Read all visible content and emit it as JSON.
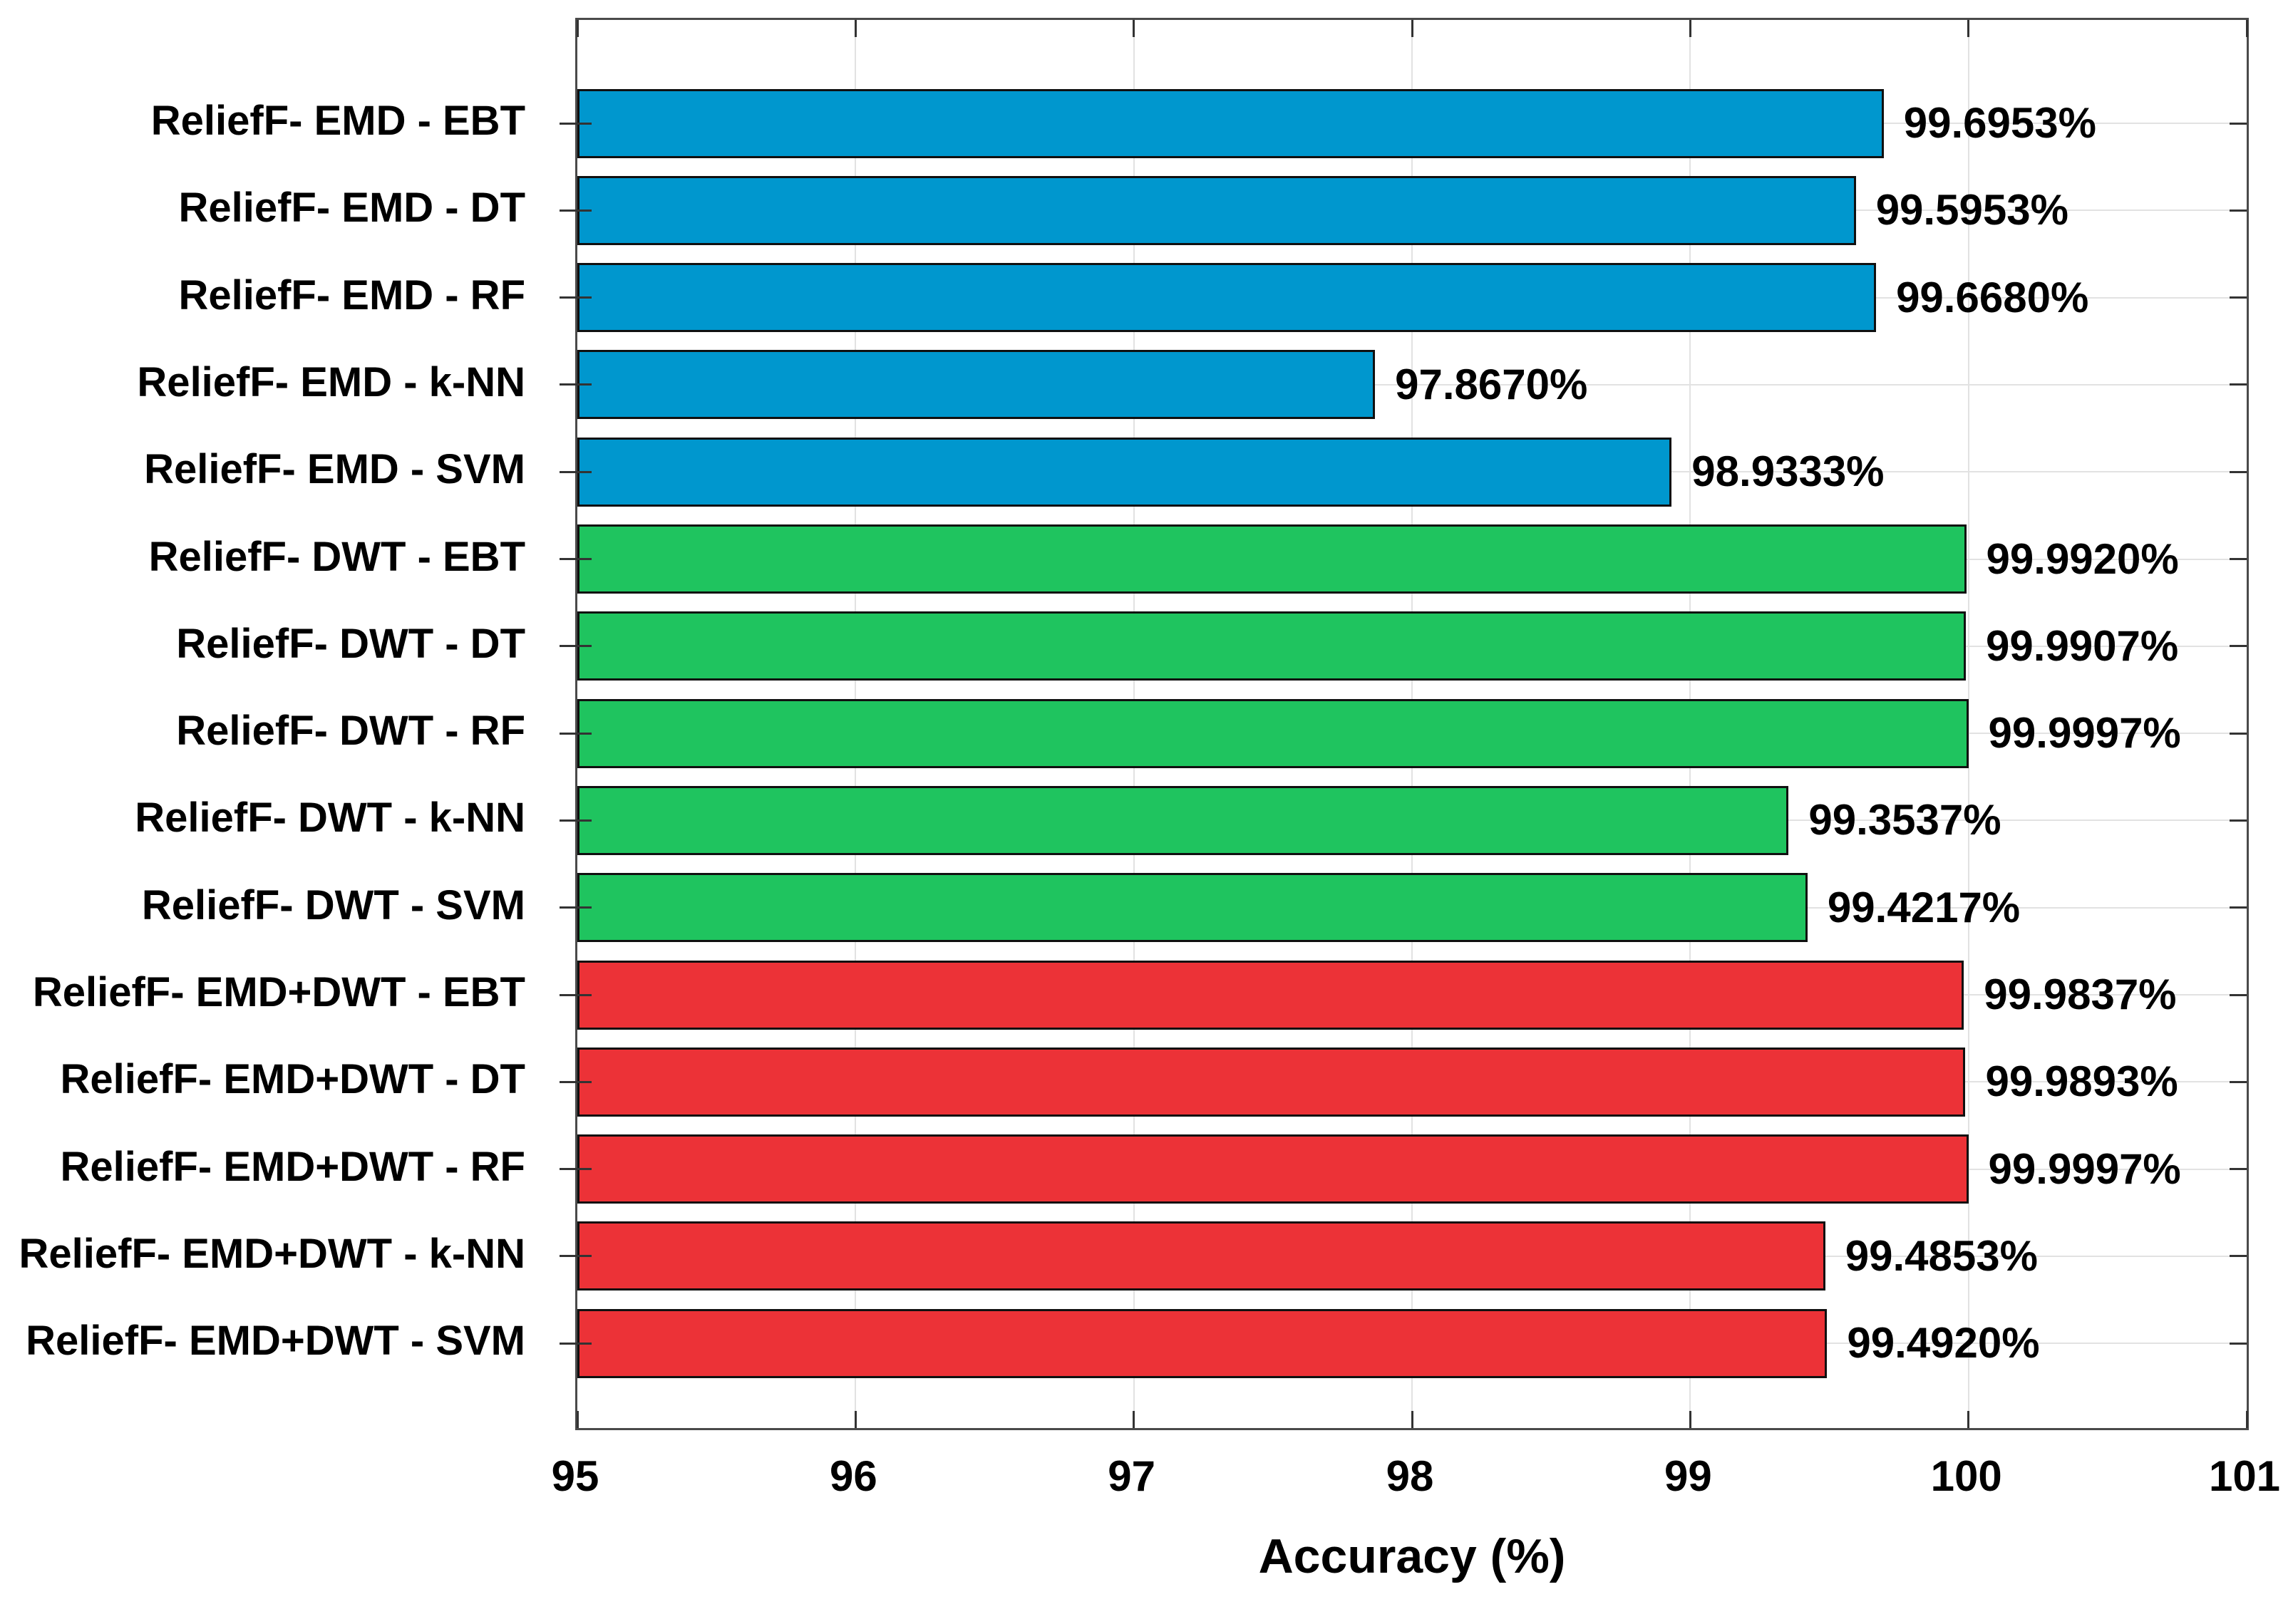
{
  "chart_data": {
    "type": "bar",
    "orientation": "horizontal",
    "title": "",
    "xlabel": "Accuracy (%)",
    "ylabel": "",
    "xlim": [
      95,
      101
    ],
    "xticks": [
      "95",
      "96",
      "97",
      "98",
      "99",
      "100",
      "101"
    ],
    "grid": true,
    "legend": "none",
    "groups": [
      {
        "name": "ReliefF-EMD",
        "color": "#0097ce"
      },
      {
        "name": "ReliefF-DWT",
        "color": "#1fc45f"
      },
      {
        "name": "ReliefF-EMD+DWT",
        "color": "#ec3237"
      }
    ],
    "items": [
      {
        "label": "ReliefF- EMD - EBT",
        "value": 99.6953,
        "display": "99.6953%",
        "color": "#0097ce"
      },
      {
        "label": "ReliefF- EMD - DT",
        "value": 99.5953,
        "display": "99.5953%",
        "color": "#0097ce"
      },
      {
        "label": "ReliefF- EMD - RF",
        "value": 99.668,
        "display": "99.6680%",
        "color": "#0097ce"
      },
      {
        "label": "ReliefF- EMD - k-NN",
        "value": 97.867,
        "display": "97.8670%",
        "color": "#0097ce"
      },
      {
        "label": "ReliefF- EMD - SVM",
        "value": 98.9333,
        "display": "98.9333%",
        "color": "#0097ce"
      },
      {
        "label": "ReliefF- DWT - EBT",
        "value": 99.992,
        "display": "99.9920%",
        "color": "#1fc45f"
      },
      {
        "label": "ReliefF- DWT - DT",
        "value": 99.9907,
        "display": "99.9907%",
        "color": "#1fc45f"
      },
      {
        "label": "ReliefF- DWT - RF",
        "value": 99.9997,
        "display": "99.9997%",
        "color": "#1fc45f"
      },
      {
        "label": "ReliefF- DWT - k-NN",
        "value": 99.3537,
        "display": "99.3537%",
        "color": "#1fc45f"
      },
      {
        "label": "ReliefF- DWT - SVM",
        "value": 99.4217,
        "display": "99.4217%",
        "color": "#1fc45f"
      },
      {
        "label": "ReliefF- EMD+DWT - EBT",
        "value": 99.9837,
        "display": "99.9837%",
        "color": "#ec3237"
      },
      {
        "label": "ReliefF- EMD+DWT - DT",
        "value": 99.9893,
        "display": "99.9893%",
        "color": "#ec3237"
      },
      {
        "label": "ReliefF- EMD+DWT - RF",
        "value": 99.9997,
        "display": "99.9997%",
        "color": "#ec3237"
      },
      {
        "label": "ReliefF- EMD+DWT - k-NN",
        "value": 99.4853,
        "display": "99.4853%",
        "color": "#ec3237"
      },
      {
        "label": "ReliefF- EMD+DWT - SVM",
        "value": 99.492,
        "display": "99.4920%",
        "color": "#ec3237"
      }
    ]
  },
  "colors": {
    "background": "#ffffff",
    "grid": "#e2e2e2",
    "spine": "#4a4a4a",
    "bar_border": "#101010",
    "text": "#000000"
  }
}
